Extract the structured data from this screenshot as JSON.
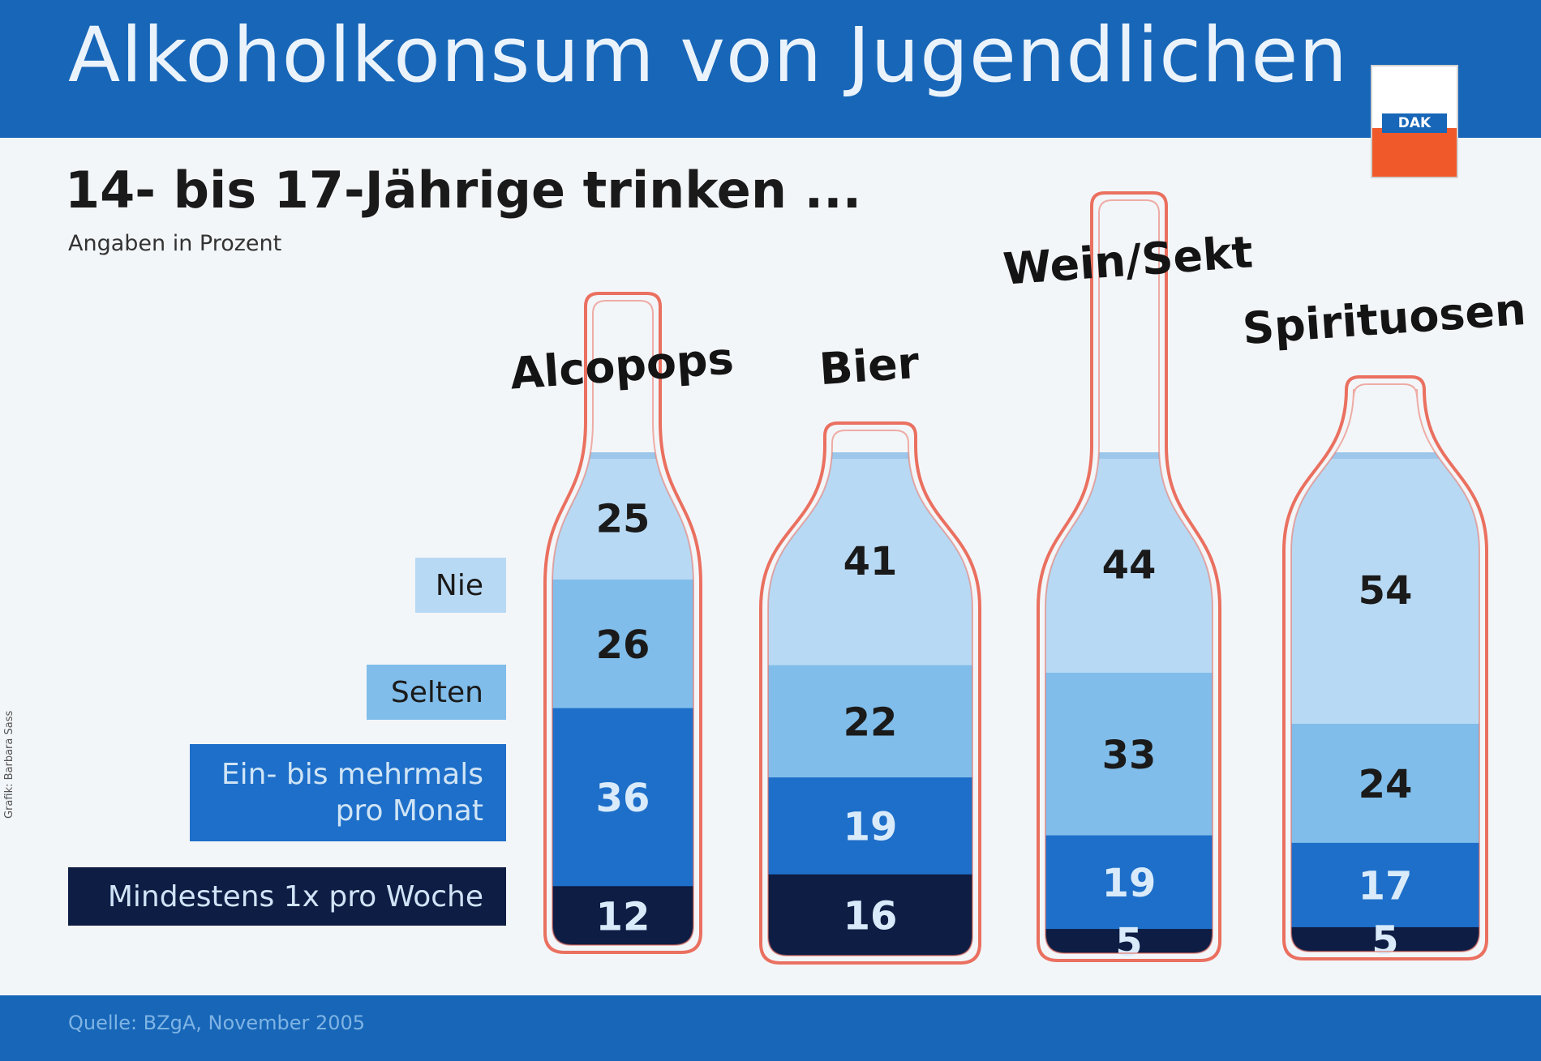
{
  "header": {
    "title": "Alkoholkonsum von Jugendlichen",
    "logo_text": "DAK"
  },
  "subtitle": "14- bis 17-Jährige trinken ...",
  "note": "Angaben in Prozent",
  "credit": "Grafik: Barbara Sass",
  "source": "Quelle: BZgA, November 2005",
  "colors": {
    "nie": "#b8d9f3",
    "selten": "#80bdea",
    "monat": "#1e6fc9",
    "woche": "#0d1d44",
    "outline": "#ea7060",
    "header": "#1766b8"
  },
  "legend": [
    {
      "key": "nie",
      "label": "Nie"
    },
    {
      "key": "selten",
      "label": "Selten"
    },
    {
      "key": "monat",
      "label": "Ein- bis mehrmals\npro Monat"
    },
    {
      "key": "woche",
      "label": "Mindestens 1x pro Woche"
    }
  ],
  "chart_data": {
    "type": "bar",
    "stacked": true,
    "unit": "%",
    "categories": [
      "Alcopops",
      "Bier",
      "Wein/Sekt",
      "Spirituosen"
    ],
    "series": [
      {
        "name": "Mindestens 1x pro Woche",
        "values": [
          12,
          16,
          5,
          5
        ]
      },
      {
        "name": "Ein- bis mehrmals pro Monat",
        "values": [
          36,
          19,
          19,
          17
        ]
      },
      {
        "name": "Selten",
        "values": [
          26,
          22,
          33,
          24
        ]
      },
      {
        "name": "Nie",
        "values": [
          25,
          41,
          44,
          54
        ]
      }
    ]
  }
}
